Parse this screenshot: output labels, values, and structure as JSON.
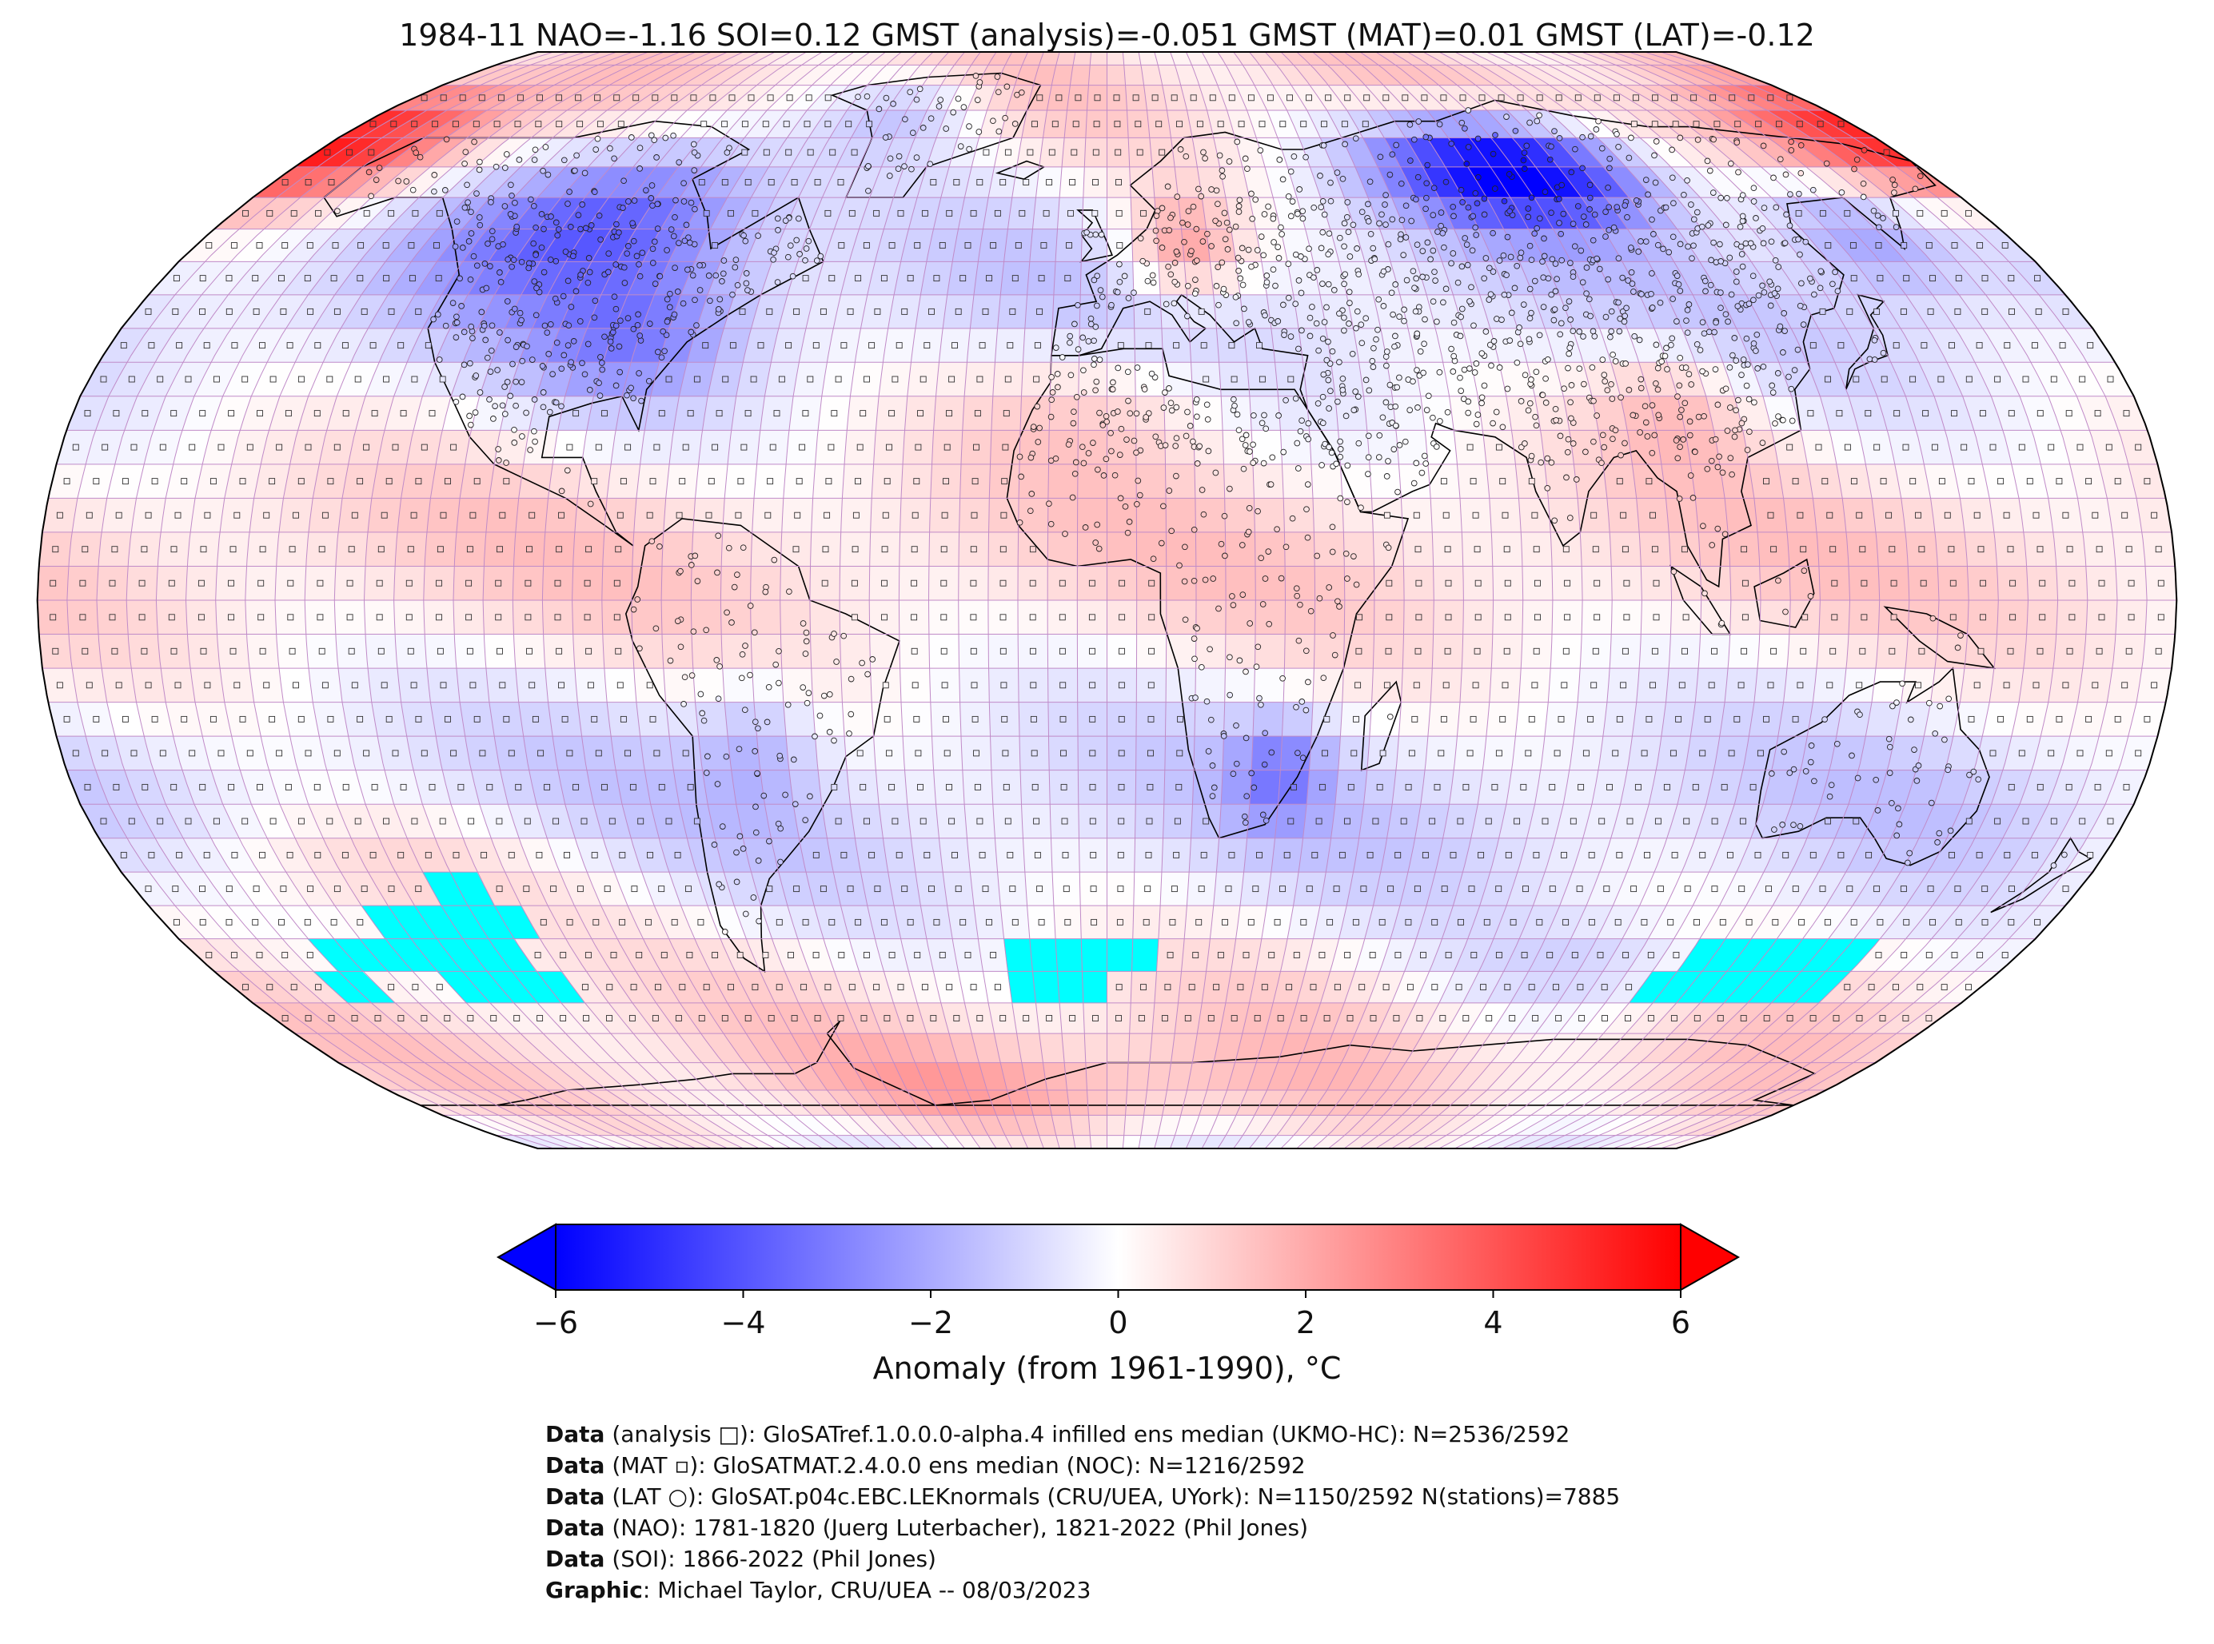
{
  "title": "1984-11 NAO=-1.16 SOI=0.12 GMST (analysis)=-0.051 GMST (MAT)=0.01 GMST (LAT)=-0.12",
  "map": {
    "projection": "Robinson",
    "variable": "near-surface temperature anomaly",
    "grid": "5x5 degree",
    "missing_color": "#00ffff",
    "colors": {
      "cold": "#0000ff",
      "neutral": "#ffffff",
      "warm": "#ff0000",
      "gridline": "#c08bc8",
      "coast": "#000000"
    }
  },
  "colorbar": {
    "min": -6,
    "max": 6,
    "ticks": [
      "−6",
      "−4",
      "−2",
      "0",
      "2",
      "4",
      "6"
    ],
    "tick_values": [
      -6,
      -4,
      -2,
      0,
      2,
      4,
      6
    ],
    "label": "Anomaly (from 1961-1990), °C",
    "extend": "both"
  },
  "credits": [
    {
      "key": "Data",
      "text": " (analysis □): GloSATref.1.0.0.0-alpha.4 infilled ens median (UKMO-HC): N=2536/2592"
    },
    {
      "key": "Data",
      "text": " (MAT ▫): GloSATMAT.2.4.0.0 ens median (NOC): N=1216/2592"
    },
    {
      "key": "Data",
      "text": " (LAT ○): GloSAT.p04c.EBC.LEKnormals (CRU/UEA, UYork): N=1150/2592 N(stations)=7885"
    },
    {
      "key": "Data",
      "text": " (NAO): 1781-1820 (Juerg Luterbacher), 1821-2022 (Phil Jones)"
    },
    {
      "key": "Data",
      "text": " (SOI): 1866-2022 (Phil Jones)"
    },
    {
      "key": "Graphic",
      "text": ": Michael Taylor, CRU/UEA -- 08/03/2023"
    }
  ]
}
